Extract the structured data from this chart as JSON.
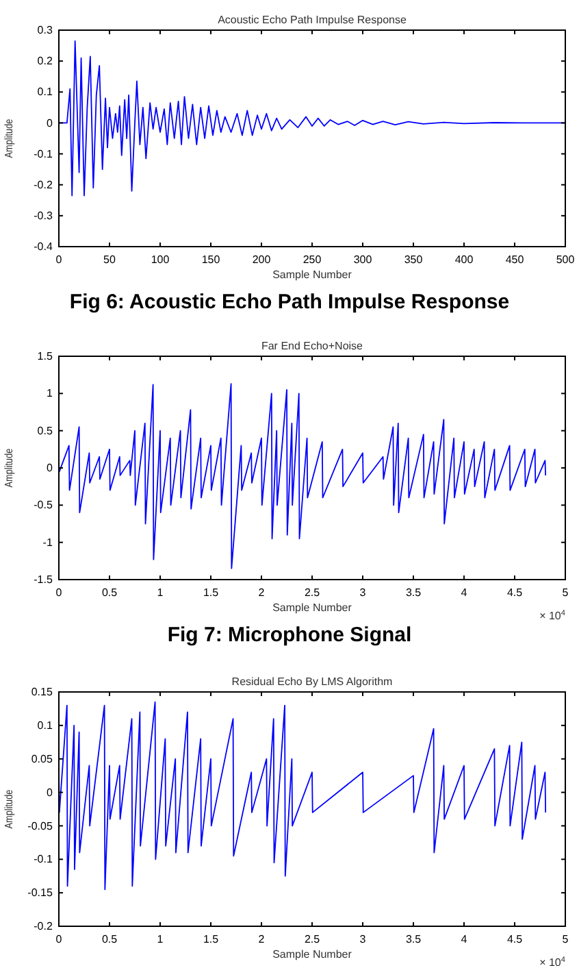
{
  "chart_data": [
    {
      "type": "line",
      "title": "Acoustic Echo Path Impulse Response",
      "xlabel": "Sample Number",
      "ylabel": "Amplitude",
      "x": [
        0,
        8,
        11,
        13,
        16,
        20,
        22,
        25,
        28,
        31,
        34,
        37,
        40,
        43,
        46,
        48,
        50,
        53,
        56,
        58,
        60,
        62,
        65,
        67,
        69,
        72,
        75,
        77,
        80,
        83,
        86,
        90,
        93,
        96,
        100,
        104,
        107,
        110,
        114,
        118,
        121,
        124,
        128,
        132,
        136,
        140,
        144,
        148,
        152,
        156,
        160,
        164,
        170,
        176,
        181,
        186,
        191,
        196,
        200,
        205,
        210,
        215,
        220,
        228,
        236,
        244,
        250,
        256,
        262,
        268,
        276,
        285,
        292,
        300,
        310,
        320,
        332,
        345,
        360,
        380,
        400,
        430,
        470,
        500
      ],
      "series": [
        {
          "color": "#0000ff",
          "values": [
            0,
            0,
            0.11,
            -0.235,
            0.265,
            -0.16,
            0.21,
            -0.235,
            0.05,
            0.215,
            -0.21,
            0.09,
            0.185,
            -0.15,
            0.08,
            -0.08,
            0.05,
            -0.05,
            0.03,
            -0.03,
            0.055,
            -0.105,
            0.075,
            -0.05,
            0.09,
            -0.22,
            0,
            0.135,
            -0.07,
            0.05,
            -0.115,
            0.065,
            -0.02,
            0.05,
            -0.03,
            0.045,
            -0.07,
            0.065,
            -0.05,
            0.07,
            -0.07,
            0.085,
            -0.05,
            0.06,
            -0.07,
            0.05,
            -0.05,
            0.055,
            -0.04,
            0.04,
            -0.03,
            0.02,
            -0.03,
            0.03,
            -0.04,
            0.04,
            -0.04,
            0.025,
            -0.02,
            0.03,
            -0.025,
            0.015,
            -0.02,
            0.01,
            -0.015,
            0.02,
            -0.01,
            0.015,
            -0.01,
            0.01,
            -0.005,
            0.005,
            -0.008,
            0.008,
            -0.005,
            0.005,
            -0.006,
            0.004,
            -0.003,
            0.002,
            -0.002,
            0.001,
            0,
            0
          ]
        }
      ],
      "xlim": [
        0,
        500
      ],
      "xticks": [
        0,
        50,
        100,
        150,
        200,
        250,
        300,
        350,
        400,
        450,
        500
      ],
      "ylim": [
        -0.4,
        0.3
      ],
      "yticks": [
        -0.4,
        -0.3,
        -0.2,
        -0.1,
        0,
        0.1,
        0.2,
        0.3
      ],
      "marker": "none",
      "line_style": "solid",
      "annotations": [
        "Fig 6: Acoustic Echo Path Impulse Response"
      ]
    },
    {
      "type": "line",
      "title": "Far End Echo+Noise",
      "xlabel": "Sample Number",
      "ylabel": "Amplitude",
      "x": [
        0,
        0.005,
        0.1,
        0.105,
        0.2,
        0.205,
        0.3,
        0.305,
        0.4,
        0.405,
        0.5,
        0.505,
        0.6,
        0.605,
        0.7,
        0.705,
        0.75,
        0.755,
        0.85,
        0.855,
        0.93,
        0.935,
        1,
        1.005,
        1.1,
        1.105,
        1.2,
        1.205,
        1.3,
        1.305,
        1.4,
        1.405,
        1.5,
        1.505,
        1.6,
        1.605,
        1.7,
        1.705,
        1.8,
        1.805,
        1.9,
        1.905,
        2,
        2.005,
        2.1,
        2.105,
        2.15,
        2.155,
        2.25,
        2.255,
        2.3,
        2.305,
        2.37,
        2.375,
        2.45,
        2.455,
        2.6,
        2.605,
        2.8,
        2.805,
        3,
        3.005,
        3.2,
        3.205,
        3.3,
        3.305,
        3.35,
        3.355,
        3.45,
        3.455,
        3.6,
        3.605,
        3.7,
        3.705,
        3.8,
        3.805,
        3.9,
        3.905,
        4,
        4.005,
        4.1,
        4.105,
        4.2,
        4.205,
        4.3,
        4.305,
        4.45,
        4.455,
        4.6,
        4.605,
        4.7,
        4.705,
        4.8,
        4.805
      ],
      "series": [
        {
          "color": "#0000ff",
          "values": [
            0.05,
            -0.05,
            0.3,
            -0.3,
            0.55,
            -0.6,
            0.2,
            -0.2,
            0.15,
            -0.15,
            0.25,
            -0.3,
            0.15,
            -0.1,
            0.1,
            -0.1,
            0.5,
            -0.5,
            0.6,
            -0.75,
            1.12,
            -1.23,
            0.5,
            -0.6,
            0.4,
            -0.5,
            0.5,
            -0.4,
            0.78,
            -0.55,
            0.4,
            -0.4,
            0.3,
            -0.3,
            0.4,
            -0.5,
            1.13,
            -1.35,
            0.3,
            -0.3,
            0.2,
            -0.2,
            0.4,
            -0.5,
            1.0,
            -0.95,
            0.5,
            -0.5,
            1.05,
            -0.9,
            0.6,
            -0.5,
            1.0,
            -0.95,
            0.4,
            -0.4,
            0.35,
            -0.4,
            0.25,
            -0.25,
            0.2,
            -0.2,
            0.15,
            -0.15,
            0.55,
            -0.5,
            0.6,
            -0.6,
            0.4,
            -0.4,
            0.45,
            -0.4,
            0.35,
            -0.35,
            0.65,
            -0.75,
            0.4,
            -0.4,
            0.35,
            -0.35,
            0.25,
            -0.25,
            0.35,
            -0.4,
            0.25,
            -0.3,
            0.3,
            -0.3,
            0.25,
            -0.25,
            0.25,
            -0.2,
            0.1,
            -0.1
          ]
        }
      ],
      "xlim": [
        0,
        5
      ],
      "xticks": [
        0,
        0.5,
        1,
        1.5,
        2,
        2.5,
        3,
        3.5,
        4,
        4.5,
        5
      ],
      "ylim": [
        -1.5,
        1.5
      ],
      "yticks": [
        -1.5,
        -1,
        -0.5,
        0,
        0.5,
        1,
        1.5
      ],
      "marker": "none",
      "line_style": "solid",
      "annotations": [
        "× 10$^{4}$",
        "Fig 7: Microphone Signal"
      ]
    },
    {
      "type": "line",
      "title": "Residual Echo By  LMS Algorithm",
      "xlabel": "Sample Number",
      "ylabel": "Amplitude",
      "x": [
        0,
        0.005,
        0.08,
        0.085,
        0.15,
        0.155,
        0.2,
        0.205,
        0.3,
        0.305,
        0.45,
        0.455,
        0.5,
        0.505,
        0.6,
        0.605,
        0.72,
        0.725,
        0.8,
        0.805,
        0.95,
        0.955,
        1.05,
        1.055,
        1.15,
        1.155,
        1.27,
        1.275,
        1.4,
        1.405,
        1.5,
        1.505,
        1.72,
        1.725,
        1.9,
        1.905,
        2.05,
        2.055,
        2.12,
        2.125,
        2.23,
        2.235,
        2.3,
        2.305,
        2.5,
        2.505,
        3,
        3.005,
        3.5,
        3.505,
        3.7,
        3.705,
        3.8,
        3.805,
        4,
        4.005,
        4.3,
        4.305,
        4.45,
        4.455,
        4.57,
        4.575,
        4.7,
        4.705,
        4.8,
        4.805
      ],
      "series": [
        {
          "color": "#0000ff",
          "values": [
            0.03,
            -0.03,
            0.13,
            -0.14,
            0.1,
            -0.115,
            0.09,
            -0.09,
            0.04,
            -0.05,
            0.13,
            -0.145,
            0.04,
            -0.04,
            0.04,
            -0.04,
            0.11,
            -0.14,
            0.12,
            -0.08,
            0.135,
            -0.1,
            0.08,
            -0.08,
            0.05,
            -0.09,
            0.12,
            -0.09,
            0.08,
            -0.08,
            0.05,
            -0.05,
            0.11,
            -0.095,
            0.03,
            -0.03,
            0.05,
            -0.05,
            0.11,
            -0.105,
            0.13,
            -0.125,
            0.05,
            -0.05,
            0.03,
            -0.03,
            0.03,
            -0.03,
            0.025,
            -0.03,
            0.095,
            -0.09,
            0.04,
            -0.04,
            0.04,
            -0.04,
            0.065,
            -0.05,
            0.07,
            -0.05,
            0.075,
            -0.07,
            0.04,
            -0.04,
            0.03,
            -0.03
          ]
        }
      ],
      "xlim": [
        0,
        5
      ],
      "xticks": [
        0,
        0.5,
        1,
        1.5,
        2,
        2.5,
        3,
        3.5,
        4,
        4.5,
        5
      ],
      "ylim": [
        -0.2,
        0.15
      ],
      "yticks": [
        -0.2,
        -0.15,
        -0.1,
        -0.05,
        0,
        0.05,
        0.1,
        0.15
      ],
      "marker": "none",
      "line_style": "solid",
      "annotations": [
        "× 10$^{4}$"
      ]
    }
  ]
}
